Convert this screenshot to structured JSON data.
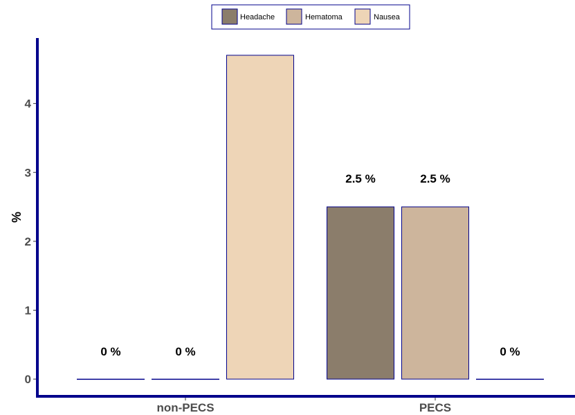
{
  "chart_data": {
    "type": "bar",
    "categories": [
      "non-PECS",
      "PECS"
    ],
    "series": [
      {
        "name": "Headache",
        "values": [
          0,
          2.5
        ],
        "labels": [
          "0 %",
          "2.5 %"
        ],
        "color": "#8b7d6b"
      },
      {
        "name": "Hematoma",
        "values": [
          0,
          2.5
        ],
        "labels": [
          "0 %",
          "2.5 %"
        ],
        "color": "#cdb59c"
      },
      {
        "name": "Nausea",
        "values": [
          4.7,
          0
        ],
        "labels": [
          "",
          "0 %"
        ],
        "color": "#eed5b7"
      }
    ],
    "ylabel": "%",
    "xlabel": "",
    "ylim": [
      -0.25,
      4.95
    ],
    "yticks": [
      0,
      1,
      2,
      3,
      4
    ],
    "legend_position": "top",
    "grid": false,
    "bar_border_color": "#00008b",
    "axis_color": "#00008b"
  }
}
